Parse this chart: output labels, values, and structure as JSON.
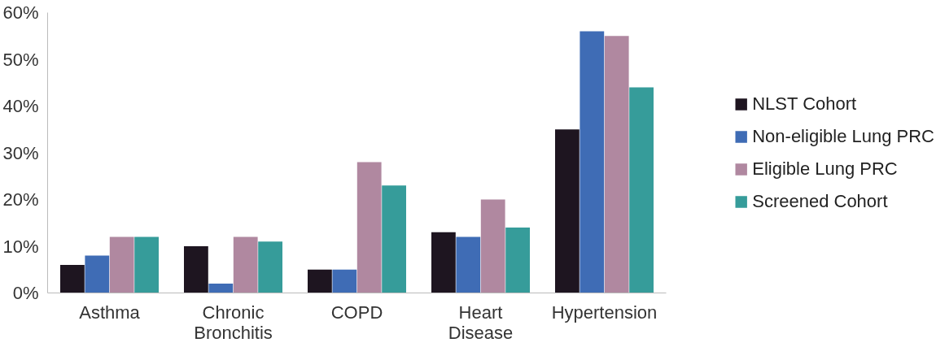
{
  "chart_data": {
    "type": "bar",
    "categories": [
      "Asthma",
      "Chronic Bronchitis",
      "COPD",
      "Heart Disease",
      "Hypertension"
    ],
    "series": [
      {
        "name": "NLST Cohort",
        "color": "#1e1520",
        "values": [
          6,
          10,
          5,
          13,
          35
        ]
      },
      {
        "name": "Non-eligible Lung PRC",
        "color": "#3f6cb5",
        "values": [
          8,
          2,
          5,
          12,
          56
        ]
      },
      {
        "name": "Eligible Lung PRC",
        "color": "#b088a0",
        "values": [
          12,
          12,
          28,
          20,
          55
        ]
      },
      {
        "name": "Screened Cohort",
        "color": "#369c9a",
        "values": [
          12,
          11,
          23,
          14,
          44
        ]
      }
    ],
    "ylim": [
      0,
      60
    ],
    "yticks": [
      {
        "value": 0,
        "label": "0%"
      },
      {
        "value": 10,
        "label": "10%"
      },
      {
        "value": 20,
        "label": "20%"
      },
      {
        "value": 30,
        "label": "30%"
      },
      {
        "value": 40,
        "label": "40%"
      },
      {
        "value": 50,
        "label": "50%"
      },
      {
        "value": 60,
        "label": "60%"
      }
    ],
    "grid": false,
    "legend": "right"
  }
}
